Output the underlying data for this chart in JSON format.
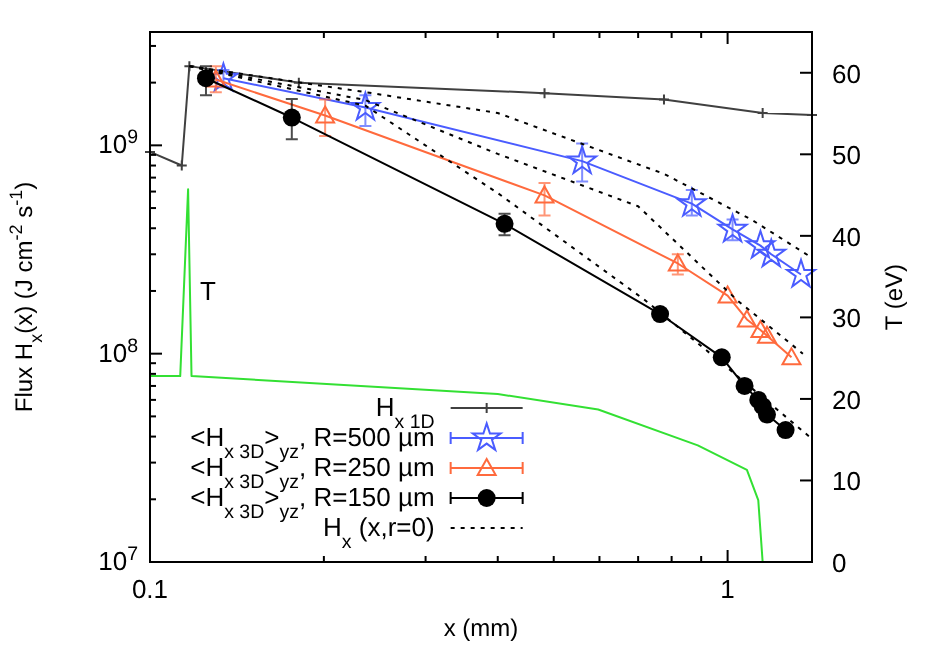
{
  "chart_data": {
    "type": "line",
    "xlabel": "x (mm)",
    "ylabel": "Flux H$_{x}$(x) (J cm$^{-2}$ s$^{-1}$)",
    "y2label": "T (eV)",
    "log": "xy",
    "grid": false,
    "legend": "bottom",
    "xlim": [
      0.1,
      1.4
    ],
    "xticks": [
      {
        "value": 0.1,
        "label": "0.1"
      },
      {
        "value": 0.2,
        "label": null
      },
      {
        "value": 0.3,
        "label": null
      },
      {
        "value": 0.4,
        "label": null
      },
      {
        "value": 0.5,
        "label": null
      },
      {
        "value": 0.6,
        "label": null
      },
      {
        "value": 0.7,
        "label": null
      },
      {
        "value": 0.8,
        "label": null
      },
      {
        "value": 0.9,
        "label": null
      },
      {
        "value": 1,
        "label": "1"
      }
    ],
    "ylim": [
      10000000.0,
      3500000000.0
    ],
    "yticks": [
      {
        "value": 10000000.0,
        "label": "10$^{7}$"
      },
      {
        "value": 20000000.0,
        "label": null
      },
      {
        "value": 30000000.0,
        "label": null
      },
      {
        "value": 40000000.0,
        "label": null
      },
      {
        "value": 50000000.0,
        "label": null
      },
      {
        "value": 60000000.0,
        "label": null
      },
      {
        "value": 70000000.0,
        "label": null
      },
      {
        "value": 80000000.0,
        "label": null
      },
      {
        "value": 90000000.0,
        "label": null
      },
      {
        "value": 100000000.0,
        "label": "10$^{8}$"
      },
      {
        "value": 200000000.0,
        "label": null
      },
      {
        "value": 300000000.0,
        "label": null
      },
      {
        "value": 400000000.0,
        "label": null
      },
      {
        "value": 500000000.0,
        "label": null
      },
      {
        "value": 600000000.0,
        "label": null
      },
      {
        "value": 700000000.0,
        "label": null
      },
      {
        "value": 800000000.0,
        "label": null
      },
      {
        "value": 900000000.0,
        "label": null
      },
      {
        "value": 1000000000.0,
        "label": "10$^{9}$"
      },
      {
        "value": 2000000000.0,
        "label": null
      },
      {
        "value": 3000000000.0,
        "label": null
      }
    ],
    "y2lim": [
      0,
      65
    ],
    "y2ticks": [
      0,
      10,
      20,
      30,
      40,
      50,
      60
    ],
    "annotations": [
      {
        "text": "T",
        "x": 0.122,
        "y": 180000000.0
      }
    ],
    "series": [
      {
        "name": "H$_{x 1D}$",
        "color": "#404040",
        "marker": "cross",
        "line_style": "solid",
        "x": [
          0.1,
          0.1135,
          0.117,
          0.181,
          0.482,
          0.776,
          1.15,
          1.4
        ],
        "values": [
          930000000.0,
          800000000.0,
          2400000000.0,
          2000000000.0,
          1780000000.0,
          1660000000.0,
          1430000000.0,
          1400000000.0
        ]
      },
      {
        "name": "<H$_{x 3D}$>$_{yz}$, R=500 µm",
        "color": "#4a5cff",
        "marker": "star",
        "line_style": "solid",
        "x": [
          0.134,
          0.236,
          0.56,
          0.867,
          1.02,
          1.14,
          1.19,
          1.34
        ],
        "values": [
          2100000000.0,
          1520000000.0,
          840000000.0,
          525000000.0,
          395000000.0,
          330000000.0,
          300000000.0,
          240000000.0
        ],
        "errors": [
          [
            1900000000.0,
            2300000000.0
          ],
          [
            1240000000.0,
            1740000000.0
          ],
          [
            670000000.0,
            1020000000.0
          ],
          [
            460000000.0,
            610000000.0
          ],
          [
            350000000.0,
            440000000.0
          ],
          null,
          null,
          null
        ]
      },
      {
        "name": "<H$_{x 3D}$>$_{yz}$, R=250 µm",
        "color": "#ff6a3d",
        "marker": "triangle",
        "line_style": "solid",
        "x": [
          0.13,
          0.201,
          0.482,
          0.82,
          1.0,
          1.08,
          1.14,
          1.17,
          1.29
        ],
        "values": [
          2070000000.0,
          1390000000.0,
          575000000.0,
          271000000.0,
          190000000.0,
          146000000.0,
          130000000.0,
          122000000.0,
          96000000.0
        ],
        "errors": [
          [
            1800000000.0,
            2400000000.0
          ],
          [
            1110000000.0,
            1660000000.0
          ],
          [
            460000000.0,
            660000000.0
          ],
          [
            240000000.0,
            300000000.0
          ],
          null,
          null,
          null,
          null,
          null
        ]
      },
      {
        "name": "<H$_{x 3D}$>$_{yz}$, R=150 µm",
        "color": "#000000",
        "marker": "circle",
        "line_style": "solid",
        "x": [
          0.125,
          0.176,
          0.411,
          0.764,
          0.977,
          1.07,
          1.13,
          1.15,
          1.17,
          1.26
        ],
        "values": [
          2100000000.0,
          1360000000.0,
          420000000.0,
          155000000.0,
          96000000.0,
          70000000.0,
          60000000.0,
          56000000.0,
          51000000.0,
          43000000.0
        ],
        "errors": [
          [
            1740000000.0,
            2400000000.0
          ],
          [
            1070000000.0,
            1670000000.0
          ],
          [
            370000000.0,
            470000000.0
          ],
          null,
          null,
          null,
          null,
          null,
          null,
          null
        ]
      },
      {
        "name": "H$_{x}$ (x,r=0)",
        "color": "#000000",
        "marker": "none",
        "line_style": "dotted",
        "x": [
          0.117,
          0.236,
          0.4,
          0.776,
          1.1,
          1.38
        ],
        "values": [
          2400000000.0,
          1800000000.0,
          1430000000.0,
          730000000.0,
          440000000.0,
          296000000.0
        ]
      },
      {
        "color": "#000000",
        "marker": "none",
        "line_style": "dotted",
        "x": [
          0.117,
          0.236,
          0.4,
          0.7,
          1.04,
          1.35
        ],
        "values": [
          2400000000.0,
          1650000000.0,
          910000000.0,
          510000000.0,
          180000000.0,
          100000000.0
        ]
      },
      {
        "color": "#000000",
        "marker": "none",
        "line_style": "dotted",
        "x": [
          0.117,
          0.236,
          0.4,
          0.717,
          0.96,
          1.4
        ],
        "values": [
          2400000000.0,
          1550000000.0,
          590000000.0,
          182000000.0,
          94000000.0,
          39000000.0
        ]
      },
      {
        "color": "#33e033",
        "marker": "none",
        "line_style": "solid",
        "axis": "y2",
        "x": [
          0.1,
          0.1128,
          0.1164,
          0.118,
          0.4,
          0.597,
          0.888,
          1.08,
          1.13,
          1.15
        ],
        "values": [
          22.8,
          22.8,
          45.7,
          22.8,
          20.6,
          18.7,
          14.3,
          11.3,
          7.6,
          0
        ]
      }
    ]
  }
}
